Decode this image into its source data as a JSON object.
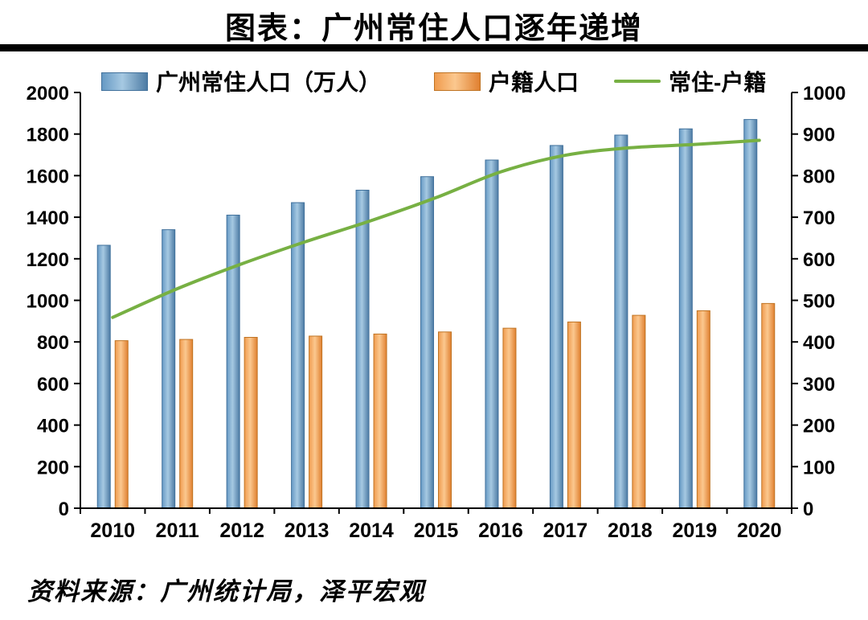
{
  "title": "图表：广州常住人口逐年递增",
  "source": "资料来源：广州统计局，泽平宏观",
  "legend": [
    {
      "label": "广州常住人口（万人）",
      "type": "bar",
      "color": "#6699c4"
    },
    {
      "label": "户籍人口",
      "type": "bar",
      "color": "#f09b4e"
    },
    {
      "label": "常住-户籍",
      "type": "line",
      "color": "#77b043"
    }
  ],
  "colors": {
    "resident_bar": {
      "light": "#a6c9e2",
      "mid": "#6699c4",
      "dark": "#4d7ba4",
      "edge": "#41719c"
    },
    "registered_bar": {
      "light": "#fbc88f",
      "mid": "#f09b4e",
      "dark": "#e08030",
      "edge": "#bf7322"
    },
    "diff_line": "#77b043",
    "axis": "#000000"
  },
  "chart_data": {
    "type": "bar",
    "title": "图表：广州常住人口逐年递增",
    "categories": [
      "2010",
      "2011",
      "2012",
      "2013",
      "2014",
      "2015",
      "2016",
      "2017",
      "2018",
      "2019",
      "2020"
    ],
    "series": [
      {
        "name": "广州常住人口（万人）",
        "type": "bar",
        "axis": "left",
        "values": [
          1265,
          1340,
          1410,
          1470,
          1530,
          1595,
          1675,
          1745,
          1795,
          1825,
          1870
        ]
      },
      {
        "name": "户籍人口",
        "type": "bar",
        "axis": "left",
        "values": [
          806,
          812,
          822,
          828,
          838,
          848,
          866,
          896,
          928,
          950,
          985
        ]
      },
      {
        "name": "常住-户籍",
        "type": "line",
        "axis": "right",
        "values": [
          459,
          528,
          588,
          642,
          692,
          747,
          809,
          849,
          867,
          875,
          885
        ]
      }
    ],
    "left_axis": {
      "min": 0,
      "max": 2000,
      "step": 200
    },
    "right_axis": {
      "min": 0,
      "max": 1000,
      "step": 100
    },
    "grid": false,
    "legend_position": "top"
  }
}
